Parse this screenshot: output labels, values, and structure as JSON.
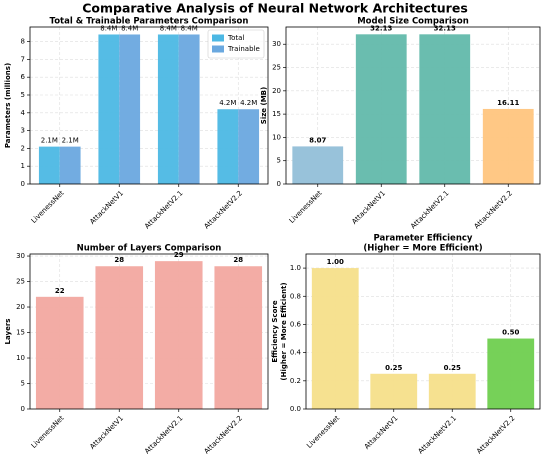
{
  "title": "Comparative Analysis of Neural Network Architectures",
  "chart_data": [
    {
      "type": "bar",
      "title": "Total & Trainable Parameters Comparison",
      "ylabel": "Parameters (millions)",
      "categories": [
        "LivenessNet",
        "AttackNetV1",
        "AttackNetV2.1",
        "AttackNetV2.2"
      ],
      "series": [
        {
          "name": "Total",
          "color": "#4cb8e4",
          "values": [
            2.1,
            8.4,
            8.4,
            4.2
          ],
          "value_labels": [
            "2.1M",
            "8.4M",
            "8.4M",
            "4.2M"
          ]
        },
        {
          "name": "Trainable",
          "color": "#6aa8df",
          "values": [
            2.1,
            8.4,
            8.4,
            4.2
          ],
          "value_labels": [
            "2.1M",
            "8.4M",
            "8.4M",
            "4.2M"
          ]
        }
      ],
      "ylim": [
        0,
        8.82
      ],
      "yticks": [
        0,
        1,
        2,
        3,
        4,
        5,
        6,
        7,
        8
      ],
      "grid": true,
      "legend": "upper right"
    },
    {
      "type": "bar",
      "title": "Model Size Comparison",
      "ylabel": "Size (MB)",
      "categories": [
        "LivenessNet",
        "AttackNetV1",
        "AttackNetV2.1",
        "AttackNetV2.2"
      ],
      "values": [
        8.07,
        32.13,
        32.13,
        16.11
      ],
      "colors": [
        "#92bfd8",
        "#62b9ab",
        "#62b9ab",
        "#ffc57e"
      ],
      "ylim": [
        0,
        33.7
      ],
      "yticks": [
        0,
        5,
        10,
        15,
        20,
        25,
        30
      ],
      "grid": true
    },
    {
      "type": "bar",
      "title": "Number of Layers Comparison",
      "ylabel": "Layers",
      "categories": [
        "LivenessNet",
        "AttackNetV1",
        "AttackNetV2.1",
        "AttackNetV2.2"
      ],
      "values": [
        22,
        28,
        29,
        28
      ],
      "colors": [
        "#f2a8a0",
        "#f2a8a0",
        "#f2a8a0",
        "#f2a8a0"
      ],
      "ylim": [
        0,
        30.4
      ],
      "yticks": [
        0,
        5,
        10,
        15,
        20,
        25,
        30
      ],
      "grid": true
    },
    {
      "type": "bar",
      "title": [
        "Parameter Efficiency",
        "(Higher = More Efficient)"
      ],
      "ylabel": [
        "Efficiency Score",
        "(Higher = More Efficient)"
      ],
      "categories": [
        "LivenessNet",
        "AttackNetV1",
        "AttackNetV2.1",
        "AttackNetV2.2"
      ],
      "values": [
        1.0,
        0.25,
        0.25,
        0.5
      ],
      "value_labels": [
        "1.00",
        "0.25",
        "0.25",
        "0.50"
      ],
      "colors": [
        "#f6df8a",
        "#f6df8a",
        "#f6df8a",
        "#6fcf4f"
      ],
      "ylim": [
        0,
        1.1
      ],
      "yticks": [
        {
          "value": 0,
          "label": "0.0"
        },
        {
          "value": 0.2,
          "label": "0.2"
        },
        {
          "value": 0.4,
          "label": "0.4"
        },
        {
          "value": 0.6,
          "label": "0.6"
        },
        {
          "value": 0.8,
          "label": "0.8"
        },
        {
          "value": 1,
          "label": "1.0"
        }
      ],
      "grid": true
    }
  ]
}
